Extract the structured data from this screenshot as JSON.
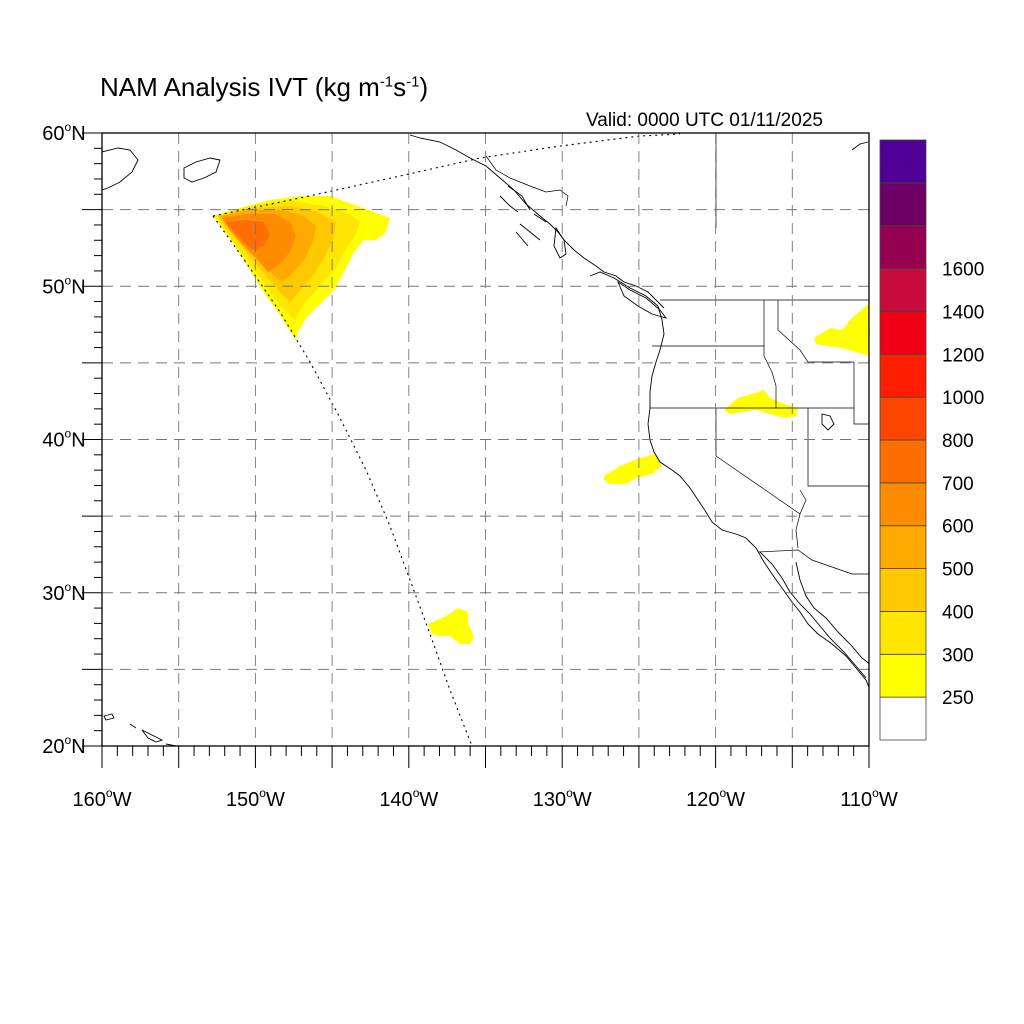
{
  "title": {
    "main": "NAM Analysis IVT (kg m",
    "exp1": "-1",
    "mid": "s",
    "exp2": "-1",
    "close": ")"
  },
  "valid_label": "Valid: 0000 UTC 01/11/2025",
  "map": {
    "lon_range": [
      -160,
      -110
    ],
    "lat_range": [
      20,
      60
    ],
    "lat_ticks": [
      {
        "value": 60,
        "num": "60",
        "deg": "o",
        "hem": "N"
      },
      {
        "value": 50,
        "num": "50",
        "deg": "o",
        "hem": "N"
      },
      {
        "value": 40,
        "num": "40",
        "deg": "o",
        "hem": "N"
      },
      {
        "value": 30,
        "num": "30",
        "deg": "o",
        "hem": "N"
      },
      {
        "value": 20,
        "num": "20",
        "deg": "o",
        "hem": "N"
      }
    ],
    "lon_ticks": [
      {
        "value": -160,
        "num": "160",
        "deg": "o",
        "hem": "W"
      },
      {
        "value": -150,
        "num": "150",
        "deg": "o",
        "hem": "W"
      },
      {
        "value": -140,
        "num": "140",
        "deg": "o",
        "hem": "W"
      },
      {
        "value": -130,
        "num": "130",
        "deg": "o",
        "hem": "W"
      },
      {
        "value": -120,
        "num": "120",
        "deg": "o",
        "hem": "W"
      },
      {
        "value": -110,
        "num": "110",
        "deg": "o",
        "hem": "W"
      }
    ],
    "grid_lons": [
      -155,
      -150,
      -145,
      -140,
      -135,
      -130,
      -125,
      -120,
      -115
    ],
    "grid_lats": [
      25,
      30,
      35,
      40,
      45,
      50,
      55
    ]
  },
  "colorbar": {
    "colors": [
      "#ffffff",
      "#ffff00",
      "#ffe600",
      "#ffc800",
      "#ffaa00",
      "#ff8c00",
      "#ff6e00",
      "#ff4600",
      "#ff1e00",
      "#f00014",
      "#c80a3c",
      "#960050",
      "#6e0064",
      "#500096"
    ],
    "labels": [
      "250",
      "300",
      "400",
      "500",
      "600",
      "700",
      "800",
      "1000",
      "1200",
      "1400",
      "1600"
    ]
  }
}
